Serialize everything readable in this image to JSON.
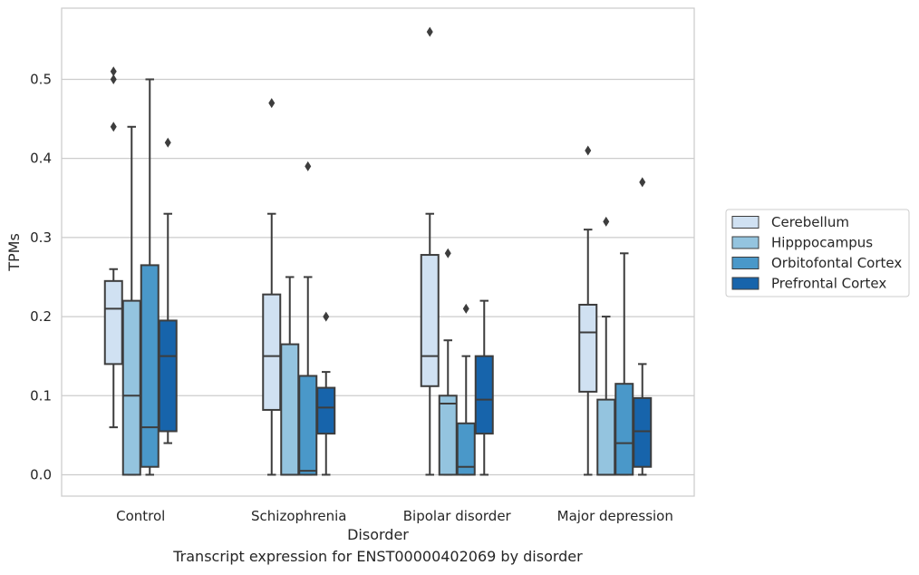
{
  "chart_data": {
    "type": "box",
    "title": "",
    "xlabel": "Disorder",
    "ylabel": "TPMs",
    "caption": "Transcript expression for ENST00000402069 by disorder",
    "categories": [
      "Control",
      "Schizophrenia",
      "Bipolar disorder",
      "Major depression"
    ],
    "ylim": [
      -0.027,
      0.59
    ],
    "yticks": [
      0.0,
      0.1,
      0.2,
      0.3,
      0.4,
      0.5
    ],
    "ytick_labels": [
      "0.0",
      "0.1",
      "0.2",
      "0.3",
      "0.4",
      "0.5"
    ],
    "grid": true,
    "legend_position": "right",
    "series": [
      {
        "name": "Cerebellum",
        "color": "#d0e1f2",
        "boxes": [
          {
            "q1": 0.14,
            "median": 0.21,
            "q3": 0.245,
            "whisker_low": 0.06,
            "whisker_high": 0.26,
            "outliers": [
              0.44,
              0.5,
              0.51
            ]
          },
          {
            "q1": 0.082,
            "median": 0.15,
            "q3": 0.228,
            "whisker_low": 0.0,
            "whisker_high": 0.33,
            "outliers": [
              0.47
            ]
          },
          {
            "q1": 0.112,
            "median": 0.15,
            "q3": 0.278,
            "whisker_low": 0.0,
            "whisker_high": 0.33,
            "outliers": [
              0.56
            ]
          },
          {
            "q1": 0.105,
            "median": 0.18,
            "q3": 0.215,
            "whisker_low": 0.0,
            "whisker_high": 0.31,
            "outliers": [
              0.41
            ]
          }
        ]
      },
      {
        "name": "Hipppocampus",
        "color": "#94c4df",
        "boxes": [
          {
            "q1": 0.0,
            "median": 0.1,
            "q3": 0.22,
            "whisker_low": 0.0,
            "whisker_high": 0.44,
            "outliers": []
          },
          {
            "q1": 0.0,
            "median": 0.0,
            "q3": 0.165,
            "whisker_low": 0.0,
            "whisker_high": 0.25,
            "outliers": []
          },
          {
            "q1": 0.0,
            "median": 0.09,
            "q3": 0.1,
            "whisker_low": 0.0,
            "whisker_high": 0.17,
            "outliers": [
              0.28
            ]
          },
          {
            "q1": 0.0,
            "median": 0.0,
            "q3": 0.095,
            "whisker_low": 0.0,
            "whisker_high": 0.2,
            "outliers": [
              0.32
            ]
          }
        ]
      },
      {
        "name": "Orbitofontal Cortex",
        "color": "#4a98c9",
        "boxes": [
          {
            "q1": 0.01,
            "median": 0.06,
            "q3": 0.265,
            "whisker_low": 0.0,
            "whisker_high": 0.5,
            "outliers": []
          },
          {
            "q1": 0.0,
            "median": 0.005,
            "q3": 0.125,
            "whisker_low": 0.0,
            "whisker_high": 0.25,
            "outliers": [
              0.39
            ]
          },
          {
            "q1": 0.0,
            "median": 0.01,
            "q3": 0.065,
            "whisker_low": 0.0,
            "whisker_high": 0.15,
            "outliers": [
              0.21
            ]
          },
          {
            "q1": 0.0,
            "median": 0.04,
            "q3": 0.115,
            "whisker_low": 0.0,
            "whisker_high": 0.28,
            "outliers": []
          }
        ]
      },
      {
        "name": "Prefrontal Cortex",
        "color": "#1764ab",
        "boxes": [
          {
            "q1": 0.055,
            "median": 0.15,
            "q3": 0.195,
            "whisker_low": 0.04,
            "whisker_high": 0.33,
            "outliers": [
              0.42
            ]
          },
          {
            "q1": 0.052,
            "median": 0.085,
            "q3": 0.11,
            "whisker_low": 0.0,
            "whisker_high": 0.13,
            "outliers": [
              0.2
            ]
          },
          {
            "q1": 0.052,
            "median": 0.095,
            "q3": 0.15,
            "whisker_low": 0.0,
            "whisker_high": 0.22,
            "outliers": []
          },
          {
            "q1": 0.01,
            "median": 0.055,
            "q3": 0.097,
            "whisker_low": 0.0,
            "whisker_high": 0.14,
            "outliers": [
              0.37
            ]
          }
        ]
      }
    ]
  }
}
